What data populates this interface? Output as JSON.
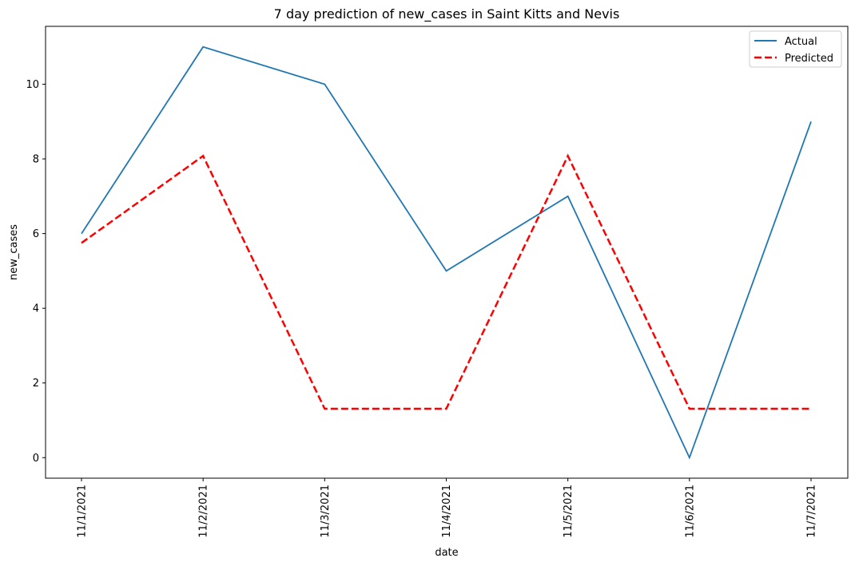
{
  "chart_data": {
    "type": "line",
    "title": "7 day prediction of new_cases in Saint Kitts and Nevis",
    "xlabel": "date",
    "ylabel": "new_cases",
    "categories": [
      "11/1/2021",
      "11/2/2021",
      "11/3/2021",
      "11/4/2021",
      "11/5/2021",
      "11/6/2021",
      "11/7/2021"
    ],
    "yticks": [
      0,
      2,
      4,
      6,
      8,
      10
    ],
    "ylim": [
      -0.55,
      11.55
    ],
    "grid": false,
    "legend_position": "top-right",
    "series": [
      {
        "name": "Actual",
        "values": [
          6,
          11,
          10,
          5,
          7,
          0,
          9
        ],
        "color": "#1f77b4",
        "style": "solid"
      },
      {
        "name": "Predicted",
        "values": [
          5.75,
          8.08,
          1.31,
          1.31,
          8.08,
          1.31,
          1.31
        ],
        "color": "#ff0000",
        "style": "dashed"
      }
    ]
  }
}
